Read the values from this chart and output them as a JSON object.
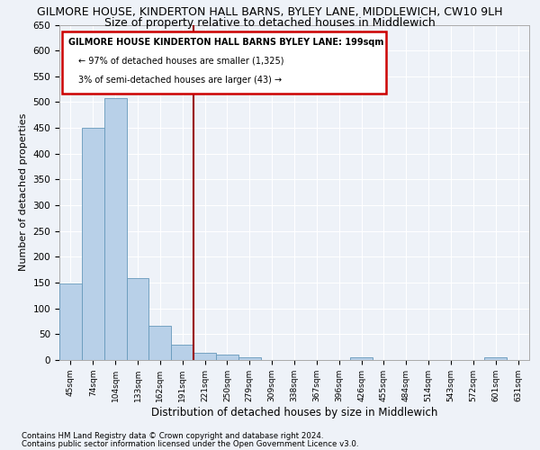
{
  "title": "GILMORE HOUSE, KINDERTON HALL BARNS, BYLEY LANE, MIDDLEWICH, CW10 9LH",
  "subtitle": "Size of property relative to detached houses in Middlewich",
  "xlabel": "Distribution of detached houses by size in Middlewich",
  "ylabel": "Number of detached properties",
  "bar_labels": [
    "45sqm",
    "74sqm",
    "104sqm",
    "133sqm",
    "162sqm",
    "191sqm",
    "221sqm",
    "250sqm",
    "279sqm",
    "309sqm",
    "338sqm",
    "367sqm",
    "396sqm",
    "426sqm",
    "455sqm",
    "484sqm",
    "514sqm",
    "543sqm",
    "572sqm",
    "601sqm",
    "631sqm"
  ],
  "bar_values": [
    148,
    450,
    507,
    158,
    67,
    30,
    14,
    10,
    5,
    0,
    0,
    0,
    0,
    6,
    0,
    0,
    0,
    0,
    0,
    5,
    0
  ],
  "bar_color": "#b8d0e8",
  "bar_edge_color": "#6699bb",
  "highlight_line_color": "#990000",
  "annotation_title": "GILMORE HOUSE KINDERTON HALL BARNS BYLEY LANE: 199sqm",
  "annotation_line1": "← 97% of detached houses are smaller (1,325)",
  "annotation_line2": "3% of semi-detached houses are larger (43) →",
  "annotation_box_color": "#ffffff",
  "annotation_box_edge_color": "#cc0000",
  "footer1": "Contains HM Land Registry data © Crown copyright and database right 2024.",
  "footer2": "Contains public sector information licensed under the Open Government Licence v3.0.",
  "ylim": [
    0,
    650
  ],
  "yticks": [
    0,
    50,
    100,
    150,
    200,
    250,
    300,
    350,
    400,
    450,
    500,
    550,
    600,
    650
  ],
  "background_color": "#eef2f8",
  "grid_color": "#ffffff",
  "title_fontsize": 9,
  "subtitle_fontsize": 9,
  "ylabel_fontsize": 8,
  "xlabel_fontsize": 8.5
}
